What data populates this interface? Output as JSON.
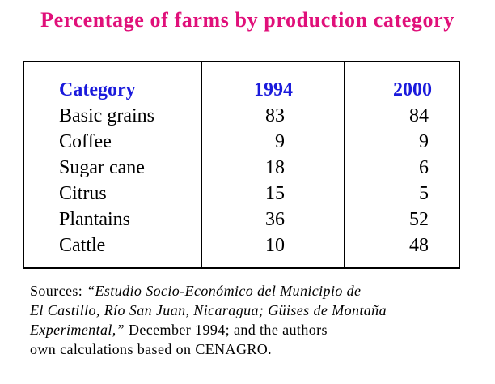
{
  "colors": {
    "title": "#e0107a",
    "header": "#1a1adc",
    "text": "#000000",
    "border": "#000000"
  },
  "chart_data": {
    "type": "table",
    "title": "Percentage of farms by production category",
    "columns": [
      "Category",
      "1994",
      "2000"
    ],
    "rows": [
      {
        "category": "Basic grains",
        "y1994": "83",
        "y2000": "84"
      },
      {
        "category": "Coffee",
        "y1994": "9",
        "y2000": "9"
      },
      {
        "category": "Sugar cane",
        "y1994": "18",
        "y2000": "6"
      },
      {
        "category": "Citrus",
        "y1994": "15",
        "y2000": "5"
      },
      {
        "category": "Plantains",
        "y1994": "36",
        "y2000": "52"
      },
      {
        "category": "Cattle",
        "y1994": "10",
        "y2000": "48"
      }
    ]
  },
  "sources": {
    "lead": "Sources: ",
    "italic_1": "“Estudio Socio-Económico del Municipio de",
    "italic_2": "El Castillo, Río San Juan, Nicaragua; Güises de Montaña",
    "italic_3": "Experimental,”",
    "tail_3": " December 1994; and the authors",
    "line_4": "own calculations based on CENAGRO."
  }
}
